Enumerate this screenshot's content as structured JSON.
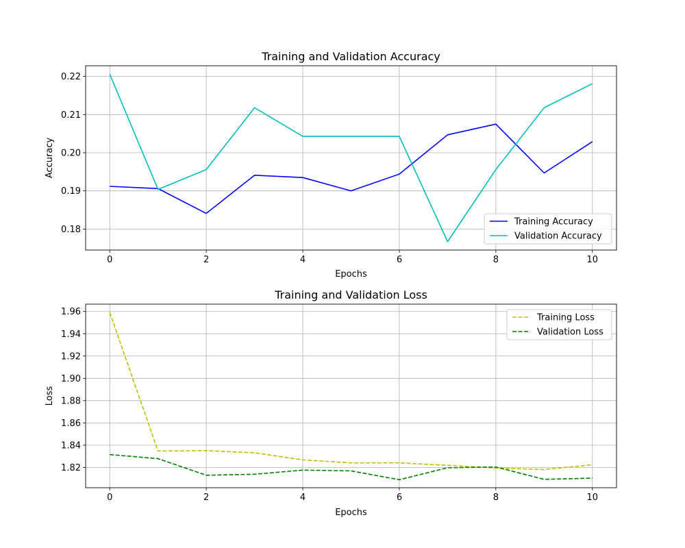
{
  "chart_data": [
    {
      "type": "line",
      "title": "Training and Validation Accuracy",
      "xlabel": "Epochs",
      "ylabel": "Accuracy",
      "xlim": [
        -0.5,
        10.5
      ],
      "ylim": [
        0.1745,
        0.2228
      ],
      "xticks": [
        0,
        2,
        4,
        6,
        8,
        10
      ],
      "xtick_labels": [
        "0",
        "2",
        "4",
        "6",
        "8",
        "10"
      ],
      "yticks": [
        0.18,
        0.19,
        0.2,
        0.21,
        0.22
      ],
      "ytick_labels": [
        "0.18",
        "0.19",
        "0.20",
        "0.21",
        "0.22"
      ],
      "grid": true,
      "legend_position": "lower-right",
      "x": [
        0,
        1,
        2,
        3,
        4,
        5,
        6,
        7,
        8,
        9,
        10
      ],
      "series": [
        {
          "name": "Training Accuracy",
          "color": "#0000ff",
          "dash": "solid",
          "values": [
            0.1912,
            0.1906,
            0.1841,
            0.1941,
            0.1935,
            0.19,
            0.1944,
            0.2047,
            0.2075,
            0.1947,
            0.2029
          ]
        },
        {
          "name": "Validation Accuracy",
          "color": "#00bfbf",
          "dash": "solid",
          "values": [
            0.2206,
            0.1904,
            0.1956,
            0.2118,
            0.2043,
            0.2043,
            0.2043,
            0.1767,
            0.1956,
            0.2118,
            0.2181
          ]
        }
      ]
    },
    {
      "type": "line",
      "title": "Training and Validation Loss",
      "xlabel": "Epochs",
      "ylabel": "Loss",
      "xlim": [
        -0.5,
        10.5
      ],
      "ylim": [
        1.8018,
        1.9666
      ],
      "xticks": [
        0,
        2,
        4,
        6,
        8,
        10
      ],
      "xtick_labels": [
        "0",
        "2",
        "4",
        "6",
        "8",
        "10"
      ],
      "yticks": [
        1.82,
        1.84,
        1.86,
        1.88,
        1.9,
        1.92,
        1.94,
        1.96
      ],
      "ytick_labels": [
        "1.82",
        "1.84",
        "1.86",
        "1.88",
        "1.90",
        "1.92",
        "1.94",
        "1.96"
      ],
      "grid": true,
      "legend_position": "upper-right",
      "x": [
        0,
        1,
        2,
        3,
        4,
        5,
        6,
        7,
        8,
        9,
        10
      ],
      "series": [
        {
          "name": "Training Loss",
          "color": "#bfbf00",
          "dash": "dashed",
          "values": [
            1.9591,
            1.8347,
            1.8351,
            1.8332,
            1.8268,
            1.8241,
            1.8241,
            1.8219,
            1.8195,
            1.8181,
            1.8224
          ]
        },
        {
          "name": "Validation Loss",
          "color": "#008000",
          "dash": "dashed",
          "values": [
            1.8316,
            1.8279,
            1.813,
            1.8139,
            1.8176,
            1.8169,
            1.809,
            1.8197,
            1.8204,
            1.8093,
            1.8104
          ]
        }
      ]
    }
  ]
}
